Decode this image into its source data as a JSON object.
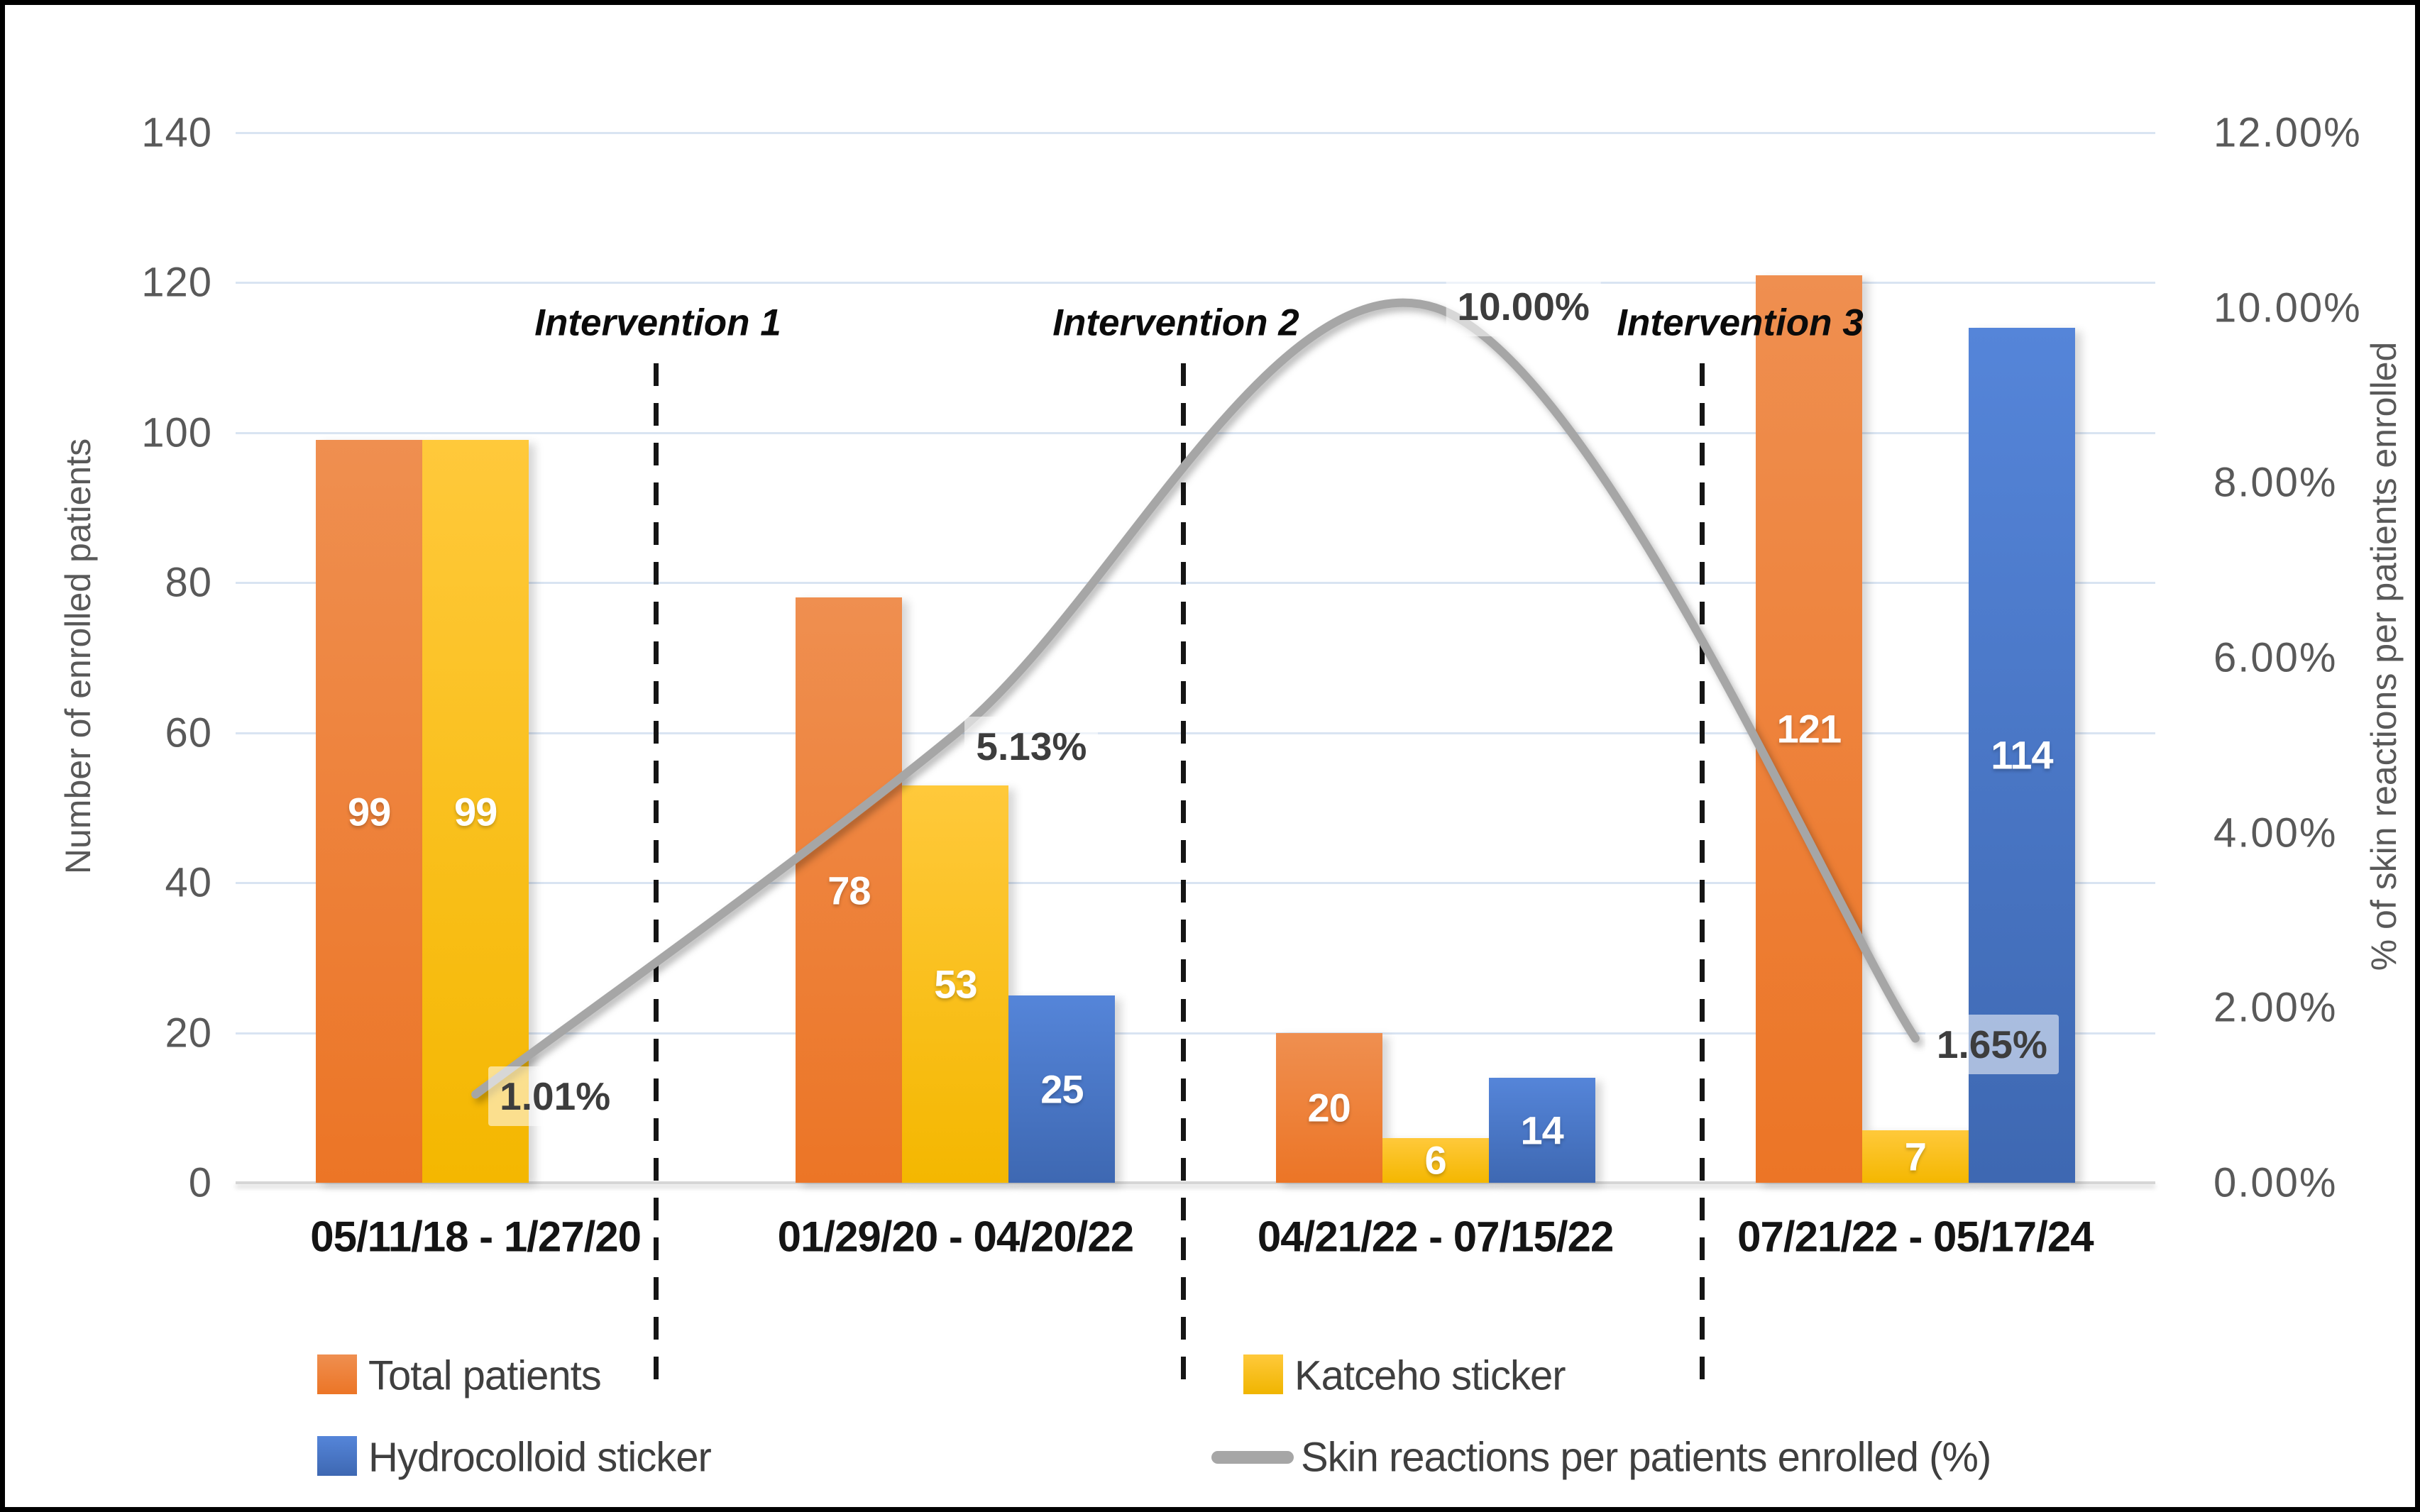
{
  "chart_data": {
    "type": "bar",
    "subtype": "grouped-bar-with-smooth-line-overlay",
    "title": "",
    "categories": [
      "05/11/18 - 1/27/20",
      "01/29/20 - 04/20/22",
      "04/21/22 - 07/15/22",
      "07/21/22 - 05/17/24"
    ],
    "series": [
      {
        "name": "Total patients",
        "color": "#ED7D31",
        "values": [
          99,
          78,
          20,
          121
        ]
      },
      {
        "name": "Katceho sticker",
        "color": "#FFC000",
        "values": [
          99,
          53,
          6,
          7
        ]
      },
      {
        "name": "Hydrocolloid sticker",
        "color": "#4472C4",
        "values": [
          0,
          25,
          14,
          114
        ]
      }
    ],
    "bar_value_labels": [
      [
        "99",
        "78",
        "20",
        "121"
      ],
      [
        "99",
        "53",
        "6",
        "7"
      ],
      [
        "",
        "25",
        "14",
        "114"
      ]
    ],
    "line_series": {
      "name": "Skin reactions per patients enrolled (%)",
      "color": "#A6A6A6",
      "values": [
        1.01,
        5.13,
        10.0,
        1.65
      ],
      "point_labels": [
        "1.01%",
        "5.13%",
        "10.00%",
        "1.65%"
      ]
    },
    "annotations": [
      {
        "label": "Intervention 1"
      },
      {
        "label": "Intervention 2"
      },
      {
        "label": "Intervention 3"
      }
    ],
    "axes": {
      "left": {
        "label": "Number of enrolled patients",
        "min": 0,
        "max": 140,
        "step": 20
      },
      "right": {
        "label": "% of  skin reactions per patients enrolled",
        "min": 0,
        "max": 12,
        "step": 2,
        "decimals": 2,
        "suffix": "%"
      }
    },
    "grid": true,
    "gridline_color": "#D9E4F2",
    "legend_position": "bottom",
    "legend": [
      {
        "label": "Total patients",
        "marker": "square",
        "color": "#ED7D31"
      },
      {
        "label": "Katceho sticker",
        "marker": "square",
        "color": "#FFC000"
      },
      {
        "label": "Hydrocolloid sticker",
        "marker": "square",
        "color": "#4472C4"
      },
      {
        "label": "Skin reactions per patients enrolled (%)",
        "marker": "line",
        "color": "#A6A6A6"
      }
    ]
  }
}
